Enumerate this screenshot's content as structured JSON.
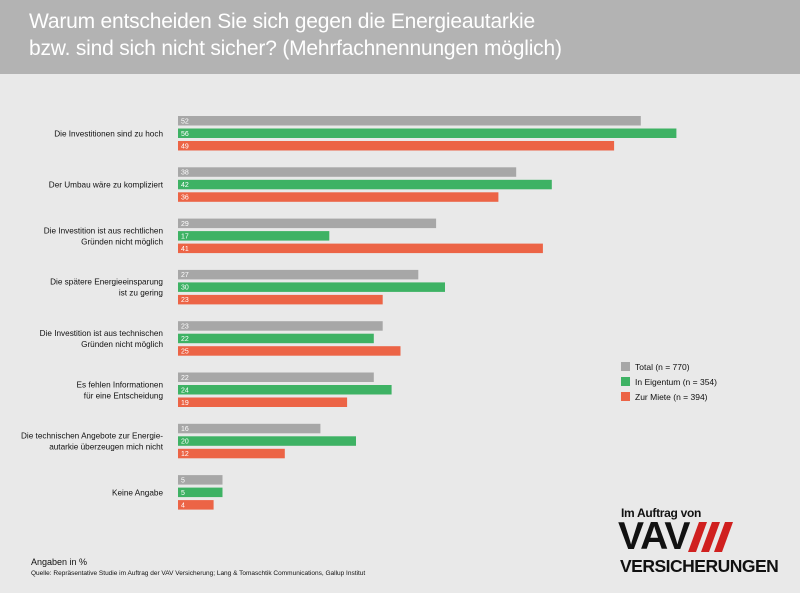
{
  "title": {
    "line1": "Warum entscheiden Sie sich gegen die Energieautarkie",
    "line2": "bzw. sind sich nicht sicher? (Mehrfachnennungen möglich)"
  },
  "colors": {
    "total": "#a7a7a7",
    "eigentum": "#3eb264",
    "miete": "#ec6446",
    "header": "#b3b3b3",
    "background": "#e9e9e9"
  },
  "chart_data": {
    "type": "bar",
    "orientation": "horizontal",
    "title": "Warum entscheiden Sie sich gegen die Energieautarkie bzw. sind sich nicht sicher? (Mehrfachnennungen möglich)",
    "unit": "Angaben in %",
    "xlim": [
      0,
      60
    ],
    "categories": [
      [
        "Die Investitionen sind zu hoch"
      ],
      [
        "Der Umbau wäre zu kompliziert"
      ],
      [
        "Die Investition ist aus rechtlichen",
        "Gründen nicht möglich"
      ],
      [
        "Die spätere Energieeinsparung",
        "ist zu gering"
      ],
      [
        "Die Investition ist aus technischen",
        "Gründen nicht möglich"
      ],
      [
        "Es fehlen Informationen",
        "für eine Entscheidung"
      ],
      [
        "Die technischen Angebote zur Energie-",
        "autarkie überzeugen mich nicht"
      ],
      [
        "Keine Angabe"
      ]
    ],
    "series": [
      {
        "name": "Total (n = 770)",
        "color": "#a7a7a7",
        "values": [
          52,
          38,
          29,
          27,
          23,
          22,
          16,
          5
        ]
      },
      {
        "name": "In Eigentum (n = 354)",
        "color": "#3eb264",
        "values": [
          56,
          42,
          17,
          30,
          22,
          24,
          20,
          5
        ]
      },
      {
        "name": "Zur Miete (n = 394)",
        "color": "#ec6446",
        "values": [
          49,
          36,
          41,
          23,
          25,
          19,
          12,
          4
        ]
      }
    ],
    "legend_position": "right"
  },
  "footer": {
    "unit": "Angaben in %",
    "source": "Quelle: Repräsentative Studie im Auftrag der VAV Versicherung; Lang & Tomaschtik Communications, Gallup Institut"
  },
  "brand": {
    "top": "Im Auftrag von",
    "main": "VAV",
    "bottom": "VERSICHERUNGEN"
  }
}
